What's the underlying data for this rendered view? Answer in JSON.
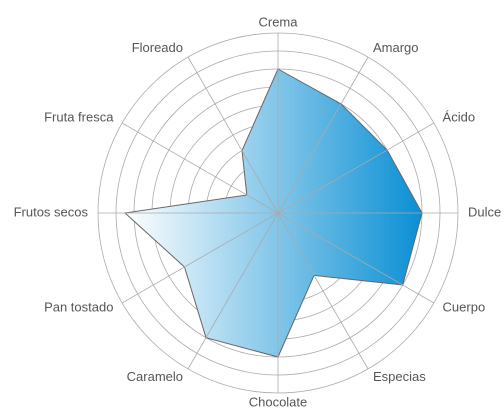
{
  "chart_data": {
    "type": "radar",
    "categories": [
      "Crema",
      "Amargo",
      "Ácido",
      "Dulce",
      "Cuerpo",
      "Especias",
      "Chocolate",
      "Caramelo",
      "Pan tostado",
      "Frutos secos",
      "Fruta fresca",
      "Floreado"
    ],
    "values": [
      8,
      7,
      7,
      8,
      8,
      4,
      8,
      8,
      6,
      8.5,
      2,
      4
    ],
    "color": "#0a8fd4",
    "rlim": [
      0,
      10
    ],
    "rticks": [
      1,
      2,
      3,
      4,
      5,
      6,
      7,
      8,
      9,
      10
    ],
    "grid": true
  }
}
